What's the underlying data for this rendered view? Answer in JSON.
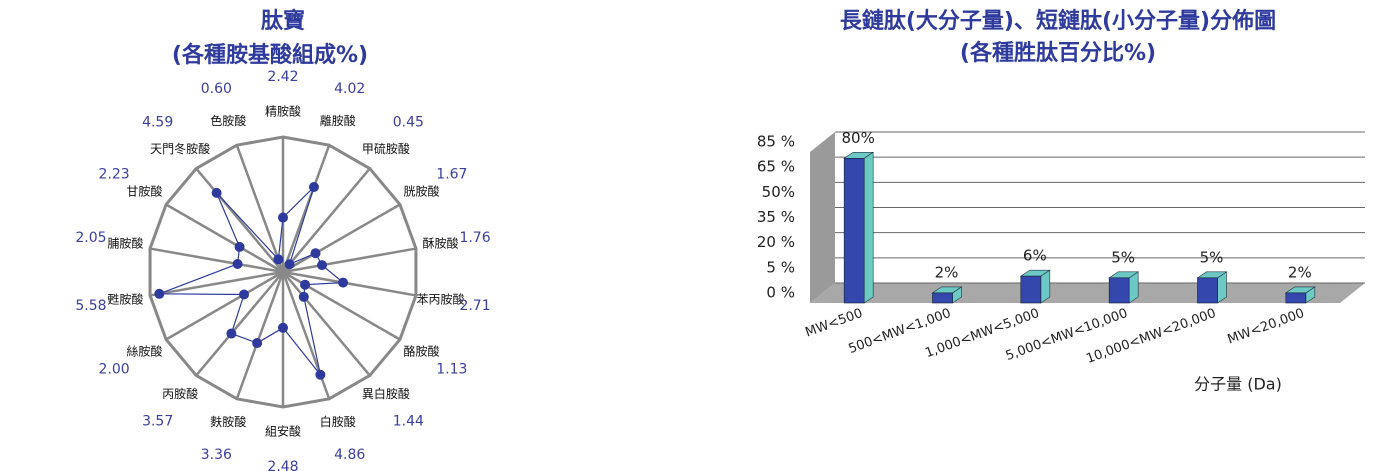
{
  "chart_data": [
    {
      "type": "radar",
      "title": "肽寶",
      "subtitle": "(各種胺基酸組成%)",
      "categories": [
        "精胺酸",
        "離胺酸",
        "甲硫胺酸",
        "胱胺酸",
        "酥胺酸",
        "苯丙胺酸",
        "酪胺酸",
        "異白胺酸",
        "白胺酸",
        "組安酸",
        "麩胺酸",
        "丙胺酸",
        "絲胺酸",
        "甦胺酸",
        "脯胺酸",
        "甘胺酸",
        "天門冬胺酸",
        "色胺酸"
      ],
      "values": [
        2.42,
        4.02,
        0.45,
        1.67,
        1.76,
        2.71,
        1.13,
        1.44,
        4.86,
        2.48,
        3.36,
        3.57,
        2.0,
        5.58,
        2.05,
        2.23,
        4.59,
        0.6
      ],
      "value_labels": [
        "2.42",
        "4.02",
        "0.45",
        "1.67",
        "1.76",
        "2.71",
        "1.13",
        "1.44",
        "4.86",
        "2.48",
        "3.36",
        "3.57",
        "2.00",
        "5.58",
        "2.05",
        "2.23",
        "4.59",
        "0.60"
      ],
      "ylim": [
        0,
        6
      ],
      "color": "#2e3a9c"
    },
    {
      "type": "bar",
      "title": "長鏈肽(大分子量)、短鏈肽(小分子量)分佈圖",
      "subtitle": "(各種胜肽百分比%)",
      "categories": [
        "MW<500",
        "500<MW<1,000",
        "1,000<MW<5,000",
        "5,000<MW<10,000",
        "10,000<MW<20,000",
        "MW<20,000"
      ],
      "values": [
        80,
        2,
        6,
        5,
        5,
        2
      ],
      "value_labels": [
        "80%",
        "2%",
        "6%",
        "5%",
        "5%",
        "2%"
      ],
      "ylim": [
        0,
        85
      ],
      "yticks": [
        {
          "value": 85,
          "label": "85 %"
        },
        {
          "value": 65,
          "label": "65 %"
        },
        {
          "value": 50,
          "label": "50%"
        },
        {
          "value": 35,
          "label": "35 %"
        },
        {
          "value": 20,
          "label": "20 %"
        },
        {
          "value": 5,
          "label": "5 %"
        },
        {
          "value": 0,
          "label": "0 %"
        }
      ],
      "xlabel": "分子量 (Da)",
      "color": "#3447ad",
      "side_color": "#6cc9c4",
      "grid": true
    }
  ]
}
